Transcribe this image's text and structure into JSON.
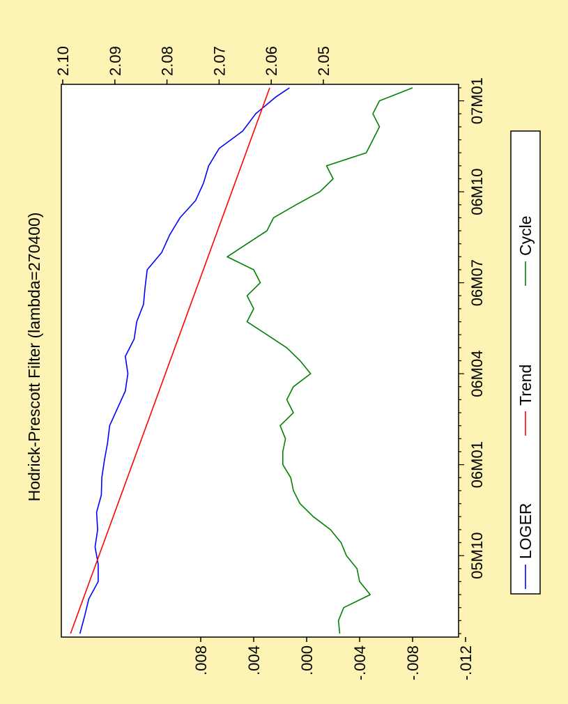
{
  "chart_data": {
    "type": "line",
    "orientation": "rotated-90-ccw",
    "title": "Hodrick-Prescott Filter (lambda=270400)",
    "x_ticks": [
      "05M10",
      "06M01",
      "06M04",
      "06M07",
      "06M10",
      "07M01"
    ],
    "x_range": [
      0,
      126
    ],
    "x_tick_positions": [
      18,
      39,
      60,
      81,
      102,
      123
    ],
    "left_axis": {
      "range": [
        2.045,
        2.1
      ],
      "ticks": [
        "2.05",
        "2.06",
        "2.07",
        "2.08",
        "2.09",
        "2.10"
      ],
      "tick_values": [
        2.05,
        2.06,
        2.07,
        2.08,
        2.09,
        2.1
      ]
    },
    "right_axis": {
      "range": [
        -0.012,
        0.016
      ],
      "ticks": [
        ".008",
        ".004",
        ".000",
        "-.004",
        "-.008",
        "-.012"
      ],
      "tick_values": [
        0.008,
        0.004,
        0.0,
        -0.004,
        -0.008,
        -0.012
      ]
    },
    "grid": false,
    "legend": {
      "placement": "bottom",
      "entries": [
        "LOGER",
        "Trend",
        "Cycle"
      ]
    },
    "series": [
      {
        "name": "LOGER",
        "axis": "left",
        "color": "#0000ff",
        "x": [
          0,
          4,
          8,
          12,
          16,
          20,
          24,
          28,
          32,
          36,
          40,
          44,
          48,
          52,
          56,
          60,
          64,
          68,
          72,
          76,
          80,
          84,
          88,
          92,
          96,
          100,
          104,
          108,
          112,
          116,
          120,
          124,
          126
        ],
        "y": [
          2.0967,
          2.0958,
          2.095,
          2.0932,
          2.0932,
          2.0938,
          2.0933,
          2.0935,
          2.0926,
          2.0925,
          2.092,
          2.0914,
          2.091,
          2.0895,
          2.088,
          2.0875,
          2.088,
          2.0863,
          2.0858,
          2.0845,
          2.0842,
          2.0838,
          2.081,
          2.0795,
          2.0775,
          2.0745,
          2.073,
          2.072,
          2.07,
          2.0655,
          2.063,
          2.059,
          2.0565
        ]
      },
      {
        "name": "Trend",
        "axis": "left",
        "color": "#ff0000",
        "x": [
          0,
          126
        ],
        "y": [
          2.0985,
          2.0603
        ]
      },
      {
        "name": "Cycle",
        "axis": "right",
        "color": "#008000",
        "x": [
          0,
          3,
          6,
          9,
          12,
          15,
          18,
          21,
          24,
          27,
          30,
          33,
          36,
          39,
          42,
          45,
          48,
          51,
          54,
          57,
          60,
          63,
          66,
          69,
          72,
          75,
          78,
          81,
          84,
          87,
          90,
          93,
          96,
          99,
          102,
          105,
          108,
          111,
          114,
          117,
          120,
          123,
          126
        ],
        "y": [
          -0.0025,
          -0.0024,
          -0.0028,
          -0.0048,
          -0.004,
          -0.0038,
          -0.003,
          -0.0026,
          -0.0018,
          -0.0005,
          0.0005,
          0.001,
          0.0012,
          0.0018,
          0.0018,
          0.0016,
          0.002,
          0.001,
          0.0015,
          0.001,
          -0.0003,
          0.0005,
          0.0015,
          0.003,
          0.0045,
          0.004,
          0.0045,
          0.0035,
          0.004,
          0.006,
          0.0045,
          0.003,
          0.0025,
          0.0008,
          -0.001,
          -0.002,
          -0.0015,
          -0.0045,
          -0.005,
          -0.0055,
          -0.005,
          -0.0055,
          -0.008
        ]
      }
    ]
  }
}
